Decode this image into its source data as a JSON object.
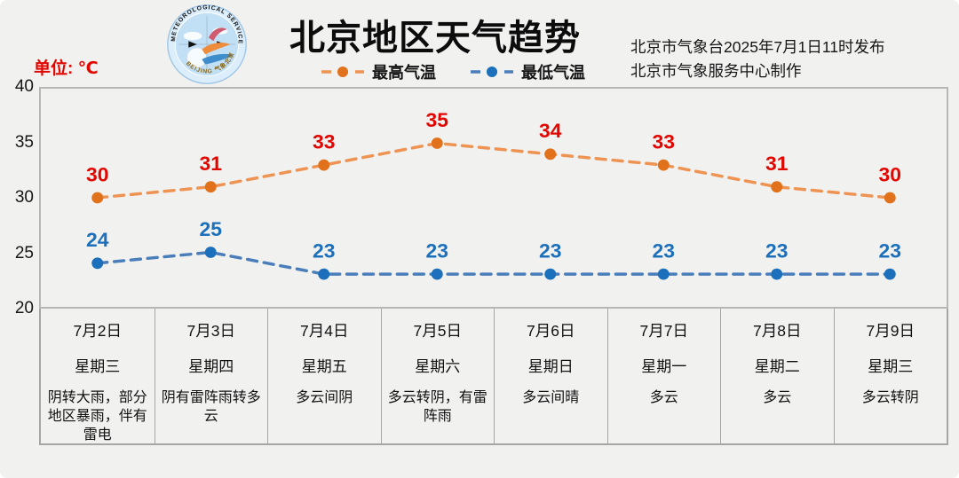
{
  "card": {
    "background": "#f1f1f0"
  },
  "header": {
    "title": "北京地区天气趋势",
    "issue_line1": "北京市气象台2025年7月1日11时发布",
    "issue_line2": "北京市气象服务中心制作",
    "unit_label": "单位: ℃",
    "logo_text_top": "METEOROLOGICAL SERVICE",
    "logo_text_bottom": "BEIJING 气象北京"
  },
  "chart_data": {
    "type": "line",
    "title": "北京地区天气趋势",
    "categories": [
      "7月2日",
      "7月3日",
      "7月4日",
      "7月5日",
      "7月6日",
      "7月7日",
      "7月8日",
      "7月9日"
    ],
    "series": [
      {
        "name": "最高气温",
        "values": [
          30,
          31,
          33,
          35,
          34,
          33,
          31,
          30
        ],
        "line_color": "#ef9352",
        "dot_color": "#e2711b",
        "label_color": "#e10600"
      },
      {
        "name": "最低气温",
        "values": [
          24,
          25,
          23,
          23,
          23,
          23,
          23,
          23
        ],
        "line_color": "#4a7ebb",
        "dot_color": "#1c70bb",
        "label_color": "#1c70bb"
      }
    ],
    "ylabel": "单位: ℃",
    "ylim": [
      20,
      40
    ],
    "yticks": [
      40,
      35,
      30,
      25,
      20
    ],
    "grid": false,
    "legend_position": "top-center"
  },
  "days": [
    {
      "date": "7月2日",
      "weekday": "星期三",
      "weather": "阴转大雨，部分地区暴雨，伴有雷电"
    },
    {
      "date": "7月3日",
      "weekday": "星期四",
      "weather": "阴有雷阵雨转多云"
    },
    {
      "date": "7月4日",
      "weekday": "星期五",
      "weather": "多云间阴"
    },
    {
      "date": "7月5日",
      "weekday": "星期六",
      "weather": "多云转阴，有雷阵雨"
    },
    {
      "date": "7月6日",
      "weekday": "星期日",
      "weather": "多云间晴"
    },
    {
      "date": "7月7日",
      "weekday": "星期一",
      "weather": "多云"
    },
    {
      "date": "7月8日",
      "weekday": "星期二",
      "weather": "多云"
    },
    {
      "date": "7月9日",
      "weekday": "星期三",
      "weather": "多云转阴"
    }
  ]
}
